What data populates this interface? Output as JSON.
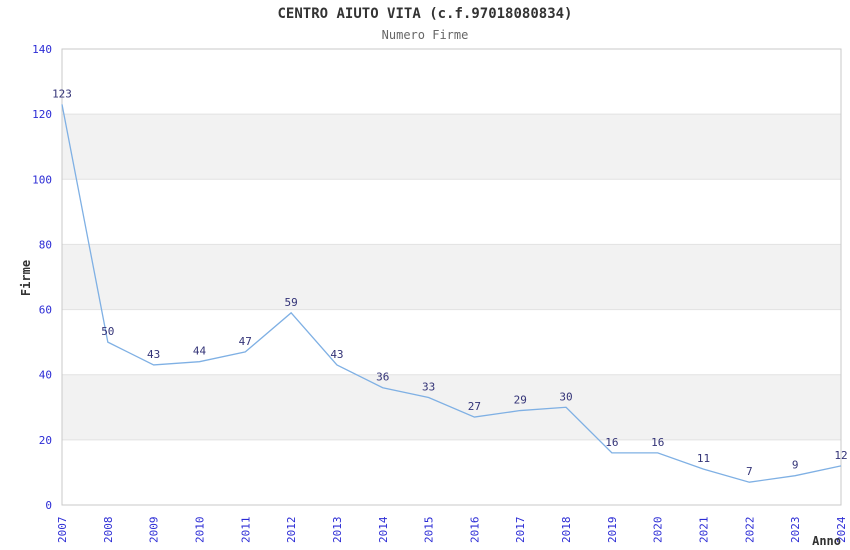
{
  "header": {
    "title": "CENTRO AIUTO VITA (c.f.97018080834)",
    "subtitle": "Numero Firme"
  },
  "chart_data": {
    "type": "line",
    "title": "CENTRO AIUTO VITA (c.f.97018080834)",
    "subtitle": "Numero Firme",
    "xlabel": "Anno",
    "ylabel": "Firme",
    "x": [
      "2007",
      "2008",
      "2009",
      "2010",
      "2011",
      "2012",
      "2013",
      "2014",
      "2015",
      "2016",
      "2017",
      "2018",
      "2019",
      "2020",
      "2021",
      "2022",
      "2023",
      "2024"
    ],
    "values": [
      123,
      50,
      43,
      44,
      47,
      59,
      43,
      36,
      33,
      27,
      29,
      30,
      16,
      16,
      11,
      7,
      9,
      12
    ],
    "ylim": [
      0,
      140
    ],
    "ytick_step": 20,
    "yticks": [
      0,
      20,
      40,
      60,
      80,
      100,
      120,
      140
    ],
    "grid": "alternating-horizontal-bands",
    "legend": "none",
    "data_labels": true,
    "colors": {
      "line": "#7fb0e4",
      "tick_label": "#2b2bd5",
      "data_label": "#333377",
      "band": "#f2f2f2",
      "gridline": "#e2e2e2",
      "border": "#c9c9c9",
      "title": "#333333",
      "subtitle": "#666666",
      "axis_title": "#333333",
      "background": "#ffffff"
    }
  }
}
